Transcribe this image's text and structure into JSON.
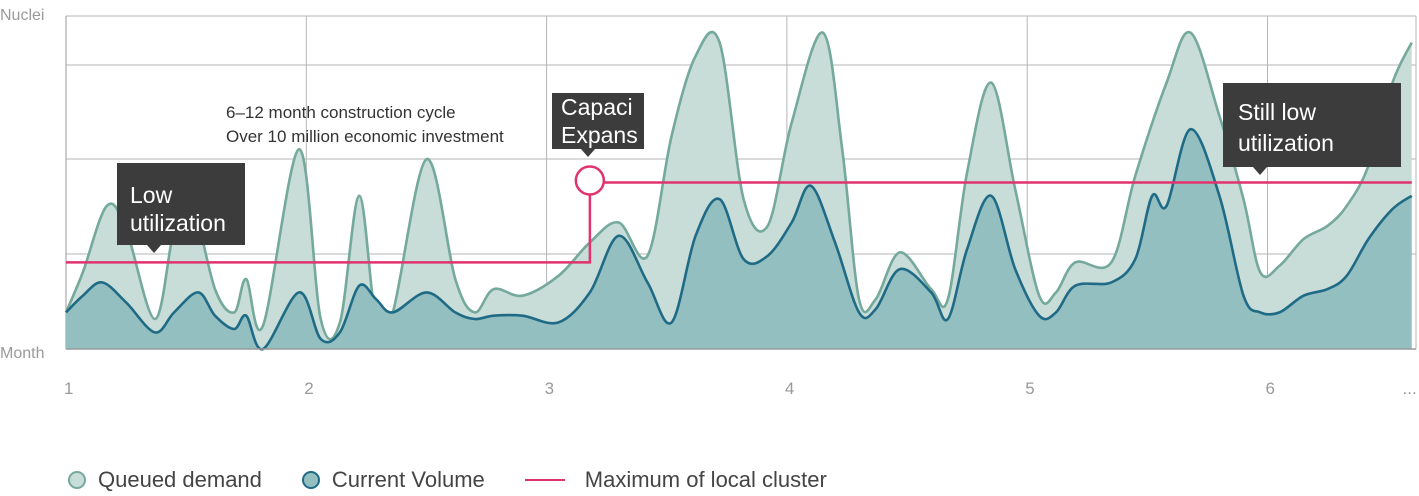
{
  "colors": {
    "demand_fill": "#c8dcd8",
    "demand_stroke": "#74a99b",
    "volume_fill": "#94bfc1",
    "volume_stroke": "#1f6b86",
    "max_line": "#e0336d",
    "callout_bg": "#3c3c3c",
    "grid": "#b5b5b5"
  },
  "chart_data": {
    "type": "area",
    "ylabel": "Nuclei",
    "xlabel": "Month",
    "x_ticks": [
      "1",
      "2",
      "3",
      "4",
      "5",
      "6",
      "..."
    ],
    "xlim": [
      1,
      6.6
    ],
    "ylim": [
      0,
      100
    ],
    "grid": "on",
    "legend_position": "bottom-left",
    "series": [
      {
        "name": "Queued demand",
        "type": "area",
        "points": [
          [
            1.0,
            11
          ],
          [
            1.07,
            23
          ],
          [
            1.17,
            43
          ],
          [
            1.25,
            36
          ],
          [
            1.37,
            9
          ],
          [
            1.45,
            36
          ],
          [
            1.52,
            45
          ],
          [
            1.62,
            18
          ],
          [
            1.7,
            11
          ],
          [
            1.75,
            21
          ],
          [
            1.82,
            7
          ],
          [
            1.97,
            60
          ],
          [
            2.06,
            9
          ],
          [
            2.14,
            8
          ],
          [
            2.22,
            46
          ],
          [
            2.29,
            9
          ],
          [
            2.36,
            11
          ],
          [
            2.5,
            57
          ],
          [
            2.62,
            21
          ],
          [
            2.7,
            11
          ],
          [
            2.78,
            18
          ],
          [
            2.9,
            16
          ],
          [
            3.05,
            22
          ],
          [
            3.18,
            32
          ],
          [
            3.3,
            38
          ],
          [
            3.42,
            28
          ],
          [
            3.52,
            64
          ],
          [
            3.62,
            88
          ],
          [
            3.72,
            92
          ],
          [
            3.82,
            45
          ],
          [
            3.92,
            37
          ],
          [
            4.02,
            68
          ],
          [
            4.15,
            95
          ],
          [
            4.23,
            60
          ],
          [
            4.3,
            15
          ],
          [
            4.37,
            15
          ],
          [
            4.47,
            29
          ],
          [
            4.6,
            18
          ],
          [
            4.67,
            15
          ],
          [
            4.75,
            53
          ],
          [
            4.85,
            80
          ],
          [
            4.95,
            48
          ],
          [
            5.05,
            16
          ],
          [
            5.12,
            17
          ],
          [
            5.2,
            26
          ],
          [
            5.35,
            26
          ],
          [
            5.45,
            52
          ],
          [
            5.58,
            80
          ],
          [
            5.68,
            95
          ],
          [
            5.8,
            70
          ],
          [
            5.9,
            45
          ],
          [
            5.97,
            23
          ],
          [
            6.05,
            25
          ],
          [
            6.15,
            33
          ],
          [
            6.25,
            37
          ],
          [
            6.33,
            43
          ],
          [
            6.42,
            55
          ],
          [
            6.52,
            80
          ],
          [
            6.6,
            92
          ]
        ]
      },
      {
        "name": "Current Volume",
        "type": "area",
        "points": [
          [
            1.0,
            11
          ],
          [
            1.07,
            16
          ],
          [
            1.15,
            20
          ],
          [
            1.25,
            14
          ],
          [
            1.37,
            5
          ],
          [
            1.45,
            11
          ],
          [
            1.55,
            17
          ],
          [
            1.62,
            10
          ],
          [
            1.7,
            6
          ],
          [
            1.75,
            10
          ],
          [
            1.82,
            0
          ],
          [
            1.97,
            17
          ],
          [
            2.06,
            3
          ],
          [
            2.14,
            5
          ],
          [
            2.22,
            19
          ],
          [
            2.29,
            15
          ],
          [
            2.36,
            11
          ],
          [
            2.5,
            17
          ],
          [
            2.62,
            11
          ],
          [
            2.7,
            9
          ],
          [
            2.78,
            10
          ],
          [
            2.9,
            10
          ],
          [
            3.05,
            8
          ],
          [
            3.18,
            17
          ],
          [
            3.3,
            34
          ],
          [
            3.42,
            20
          ],
          [
            3.52,
            8
          ],
          [
            3.62,
            34
          ],
          [
            3.72,
            45
          ],
          [
            3.82,
            27
          ],
          [
            3.92,
            28
          ],
          [
            4.02,
            38
          ],
          [
            4.1,
            49
          ],
          [
            4.2,
            32
          ],
          [
            4.3,
            11
          ],
          [
            4.37,
            12
          ],
          [
            4.47,
            24
          ],
          [
            4.6,
            17
          ],
          [
            4.67,
            9
          ],
          [
            4.75,
            30
          ],
          [
            4.85,
            46
          ],
          [
            4.95,
            24
          ],
          [
            5.05,
            10
          ],
          [
            5.12,
            11
          ],
          [
            5.2,
            19
          ],
          [
            5.35,
            20
          ],
          [
            5.45,
            27
          ],
          [
            5.52,
            46
          ],
          [
            5.58,
            43
          ],
          [
            5.68,
            66
          ],
          [
            5.8,
            46
          ],
          [
            5.9,
            16
          ],
          [
            5.97,
            11
          ],
          [
            6.05,
            11
          ],
          [
            6.15,
            16
          ],
          [
            6.25,
            18
          ],
          [
            6.33,
            22
          ],
          [
            6.42,
            33
          ],
          [
            6.52,
            42
          ],
          [
            6.6,
            46
          ]
        ]
      },
      {
        "name": "Maximum of local cluster",
        "type": "step",
        "points": [
          [
            1.0,
            26
          ],
          [
            3.18,
            26
          ],
          [
            3.18,
            50
          ],
          [
            6.6,
            50
          ]
        ]
      }
    ],
    "annotations": [
      {
        "id": "low-utilization",
        "lines": [
          "Low",
          "utilization"
        ],
        "x": 1.36,
        "y": 26
      },
      {
        "id": "capacity-expansion",
        "lines": [
          "Capaci",
          "Expans"
        ],
        "x": 3.18,
        "y": 50
      },
      {
        "id": "still-low-utilization",
        "lines": [
          "Still low",
          "utilization"
        ],
        "x": 5.97,
        "y": 50
      }
    ],
    "notes": [
      "6–12 month construction cycle",
      "Over 10 million economic investment"
    ]
  }
}
